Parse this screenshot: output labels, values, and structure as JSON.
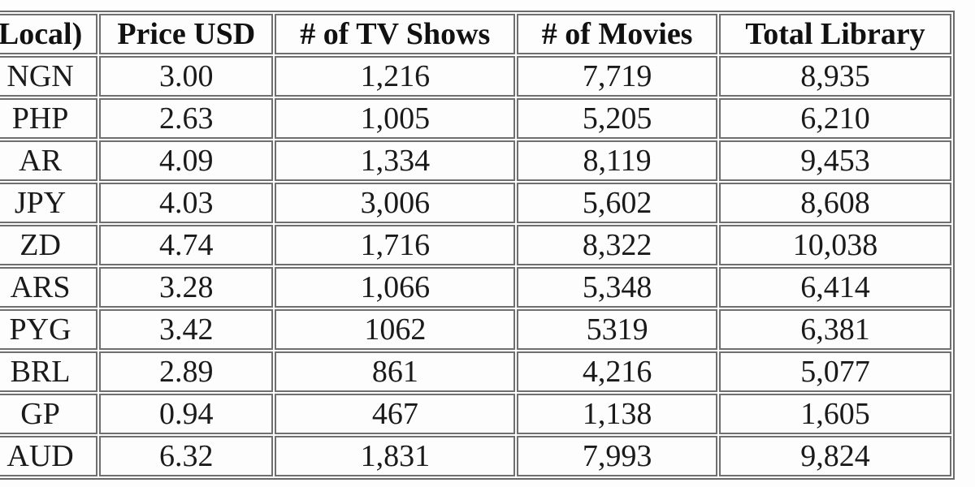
{
  "page": {
    "background_color": "#fdfdfd",
    "border_color": "#6f6f6f",
    "text_color": "#1a1a1a",
    "note": "Cropped screenshot of a pricing/library comparison table; first column header and currency labels are cut off at the left edge, last column is cut off at the right edge"
  },
  "table": {
    "columns": [
      {
        "id": "price-local",
        "label": "Local)"
      },
      {
        "id": "price-usd",
        "label": "Price USD"
      },
      {
        "id": "tv-shows",
        "label": "# of TV Shows"
      },
      {
        "id": "movies",
        "label": "# of Movies"
      },
      {
        "id": "total-library",
        "label": "Total Library"
      }
    ],
    "rows": [
      [
        "NGN",
        "3.00",
        "1,216",
        "7,719",
        "8,935"
      ],
      [
        "PHP",
        "2.63",
        "1,005",
        "5,205",
        "6,210"
      ],
      [
        "AR",
        "4.09",
        "1,334",
        "8,119",
        "9,453"
      ],
      [
        "JPY",
        "4.03",
        "3,006",
        "5,602",
        "8,608"
      ],
      [
        "ZD",
        "4.74",
        "1,716",
        "8,322",
        "10,038"
      ],
      [
        "ARS",
        "3.28",
        "1,066",
        "5,348",
        "6,414"
      ],
      [
        "PYG",
        "3.42",
        "1062",
        "5319",
        "6,381"
      ],
      [
        "BRL",
        "2.89",
        "861",
        "4,216",
        "5,077"
      ],
      [
        "GP",
        "0.94",
        "467",
        "1,138",
        "1,605"
      ],
      [
        "AUD",
        "6.32",
        "1,831",
        "7,993",
        "9,824"
      ]
    ]
  },
  "chart_data": {
    "type": "table",
    "title": "",
    "columns": [
      "Local)",
      "Price USD",
      "# of TV Shows",
      "# of Movies",
      "Total Library"
    ],
    "rows": [
      [
        "NGN",
        3.0,
        1216,
        7719,
        8935
      ],
      [
        "PHP",
        2.63,
        1005,
        5205,
        6210
      ],
      [
        "AR",
        4.09,
        1334,
        8119,
        9453
      ],
      [
        "JPY",
        4.03,
        3006,
        5602,
        8608
      ],
      [
        "ZD",
        4.74,
        1716,
        8322,
        10038
      ],
      [
        "ARS",
        3.28,
        1066,
        5348,
        6414
      ],
      [
        "PYG",
        3.42,
        1062,
        5319,
        6381
      ],
      [
        "BRL",
        2.89,
        861,
        4216,
        5077
      ],
      [
        "GP",
        0.94,
        467,
        1138,
        1605
      ],
      [
        "AUD",
        6.32,
        1831,
        7993,
        9824
      ]
    ],
    "layout_hints": {
      "header_bold": true,
      "cells_centered": true,
      "grid": "separate 1px-style gray cell borders with spacing (classic HTML table border look)",
      "cropped_left_column": true,
      "cropped_right_column": true
    }
  }
}
